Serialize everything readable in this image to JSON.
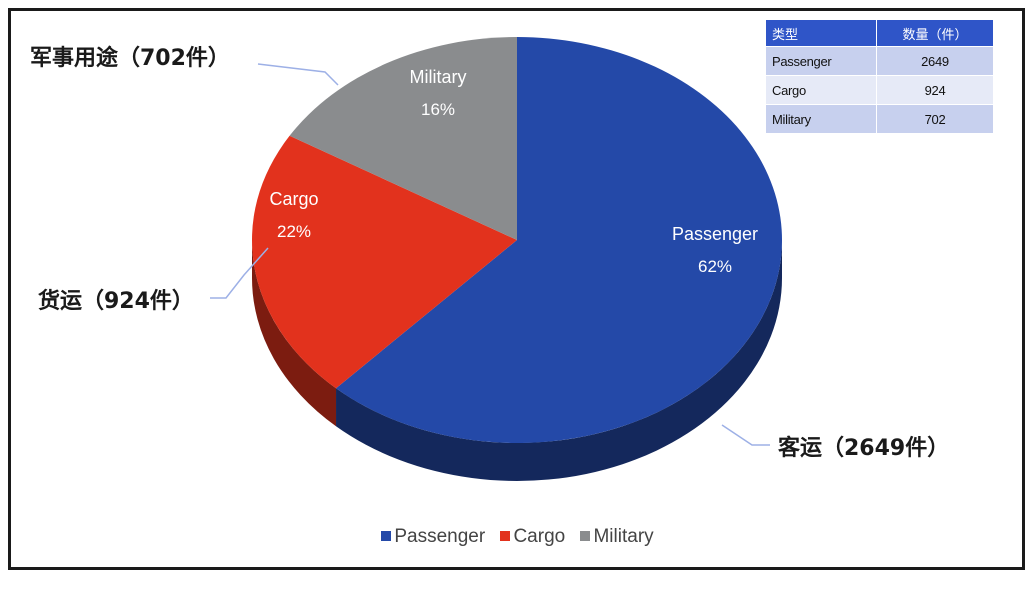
{
  "chart_data": {
    "type": "pie",
    "categories": [
      "Passenger",
      "Cargo",
      "Military"
    ],
    "values": [
      2649,
      924,
      702
    ],
    "percent_labels": [
      "62%",
      "22%",
      "16%"
    ],
    "colors": [
      "#2449a8",
      "#e2321d",
      "#8a8c8e"
    ],
    "style": "3d",
    "legend_placement": "bottom-center"
  },
  "slice_labels": [
    {
      "name": "Passenger",
      "pct": "62%"
    },
    {
      "name": "Cargo",
      "pct": "22%"
    },
    {
      "name": "Military",
      "pct": "16%"
    }
  ],
  "callouts": {
    "military": "军事用途（702件）",
    "cargo": "货运（924件）",
    "passenger": "客运（2649件）"
  },
  "table": {
    "headers": [
      "类型",
      "数量（件）"
    ],
    "rows": [
      {
        "type": "Passenger",
        "count": "2649"
      },
      {
        "type": "Cargo",
        "count": "924"
      },
      {
        "type": "Military",
        "count": "702"
      }
    ]
  },
  "legend": [
    {
      "label": "Passenger",
      "color": "#2449a8"
    },
    {
      "label": "Cargo",
      "color": "#e2321d"
    },
    {
      "label": "Military",
      "color": "#8a8c8e"
    }
  ]
}
